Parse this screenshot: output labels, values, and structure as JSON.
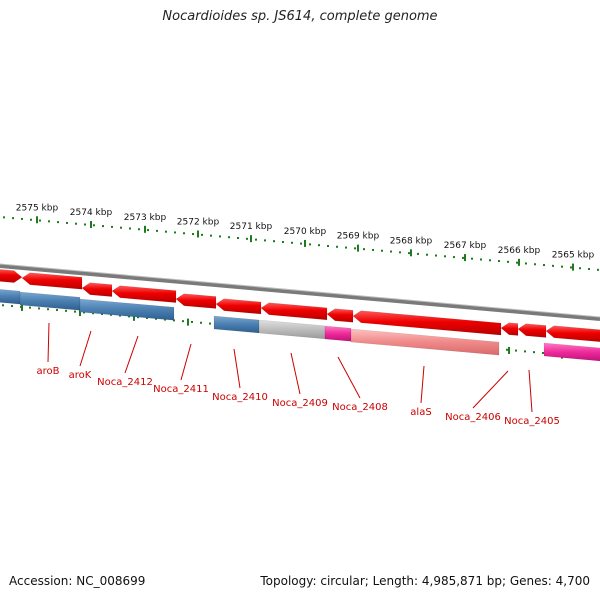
{
  "title": "Nocardioides sp. JS614, complete genome",
  "footer": {
    "accession": "Accession: NC_008699",
    "stats": "Topology: circular; Length: 4,985,871 bp; Genes: 4,700"
  },
  "ruler": {
    "labels": [
      "2575 kbp",
      "2574 kbp",
      "2573 kbp",
      "2572 kbp",
      "2571 kbp",
      "2570 kbp",
      "2569 kbp",
      "2568 kbp",
      "2567 kbp",
      "2566 kbp",
      "2565 kbp"
    ]
  },
  "genes": [
    {
      "name": "aroB",
      "label": true
    },
    {
      "name": "aroK",
      "label": true
    },
    {
      "name": "Noca_2412",
      "label": true
    },
    {
      "name": "Noca_2411",
      "label": true
    },
    {
      "name": "Noca_2410",
      "label": true
    },
    {
      "name": "Noca_2409",
      "label": true
    },
    {
      "name": "Noca_2408",
      "label": true
    },
    {
      "name": "alaS",
      "label": true
    },
    {
      "name": "Noca_2406",
      "label": true
    },
    {
      "name": "Noca_2405",
      "label": true
    }
  ],
  "colors": {
    "forward_gene": "#ee0000",
    "category_blue": "#4a7fb0",
    "category_grey": "#b8b8b8",
    "category_pink": "#ee2a9a",
    "category_salmon": "#f08a8a",
    "backbone": "#7a7a7a",
    "ticks": "#1d7a1d",
    "labels": "#cc0000"
  }
}
